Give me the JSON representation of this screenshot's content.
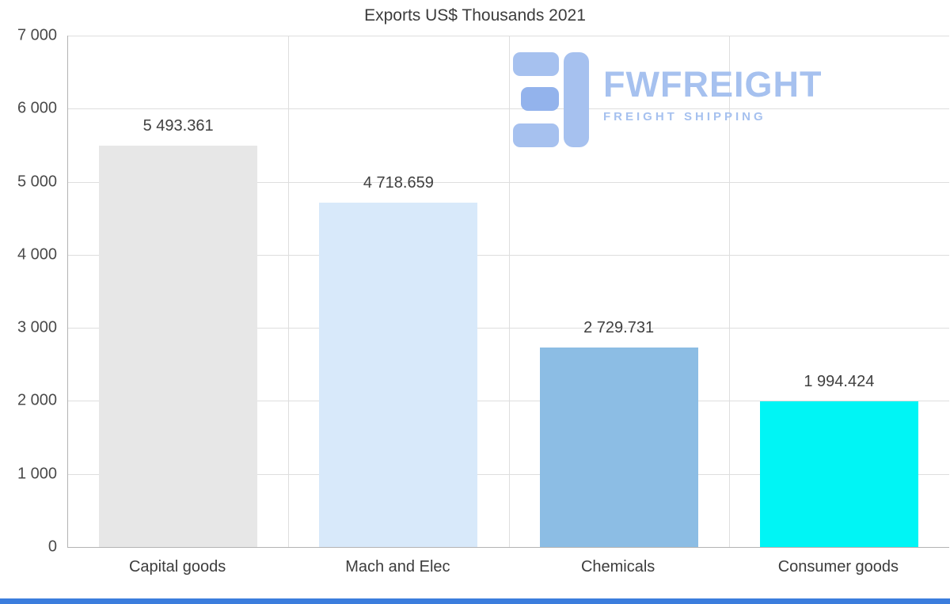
{
  "title": "Exports US$ Thousands 2021",
  "logo": {
    "name": "FWFREIGHT",
    "tagline": "FREIGHT SHIPPING",
    "color": "#a6c1ef"
  },
  "colors": {
    "bottom_strip": "#3b7ddd",
    "gridline": "#dedede",
    "axis_line": "#b3b3b3",
    "title_text": "#3c3c3c",
    "tick_text": "#4a4a4a",
    "value_text": "#404040"
  },
  "chart_data": {
    "type": "bar",
    "title": "Exports US$ Thousands 2021",
    "xlabel": "",
    "ylabel": "",
    "categories": [
      "Capital goods",
      "Mach and Elec",
      "Chemicals",
      "Consumer goods"
    ],
    "values": [
      5493.361,
      4718.659,
      2729.731,
      1994.424
    ],
    "value_labels": [
      "5 493.361",
      "4 718.659",
      "2 729.731",
      "1 994.424"
    ],
    "bar_colors": [
      "#e7e7e7",
      "#d8e9fa",
      "#8cbde4",
      "#00f5f5"
    ],
    "ylim": [
      0,
      7000
    ],
    "y_ticks": [
      {
        "value": 7000,
        "label": "7 000"
      },
      {
        "value": 6000,
        "label": "6 000"
      },
      {
        "value": 5000,
        "label": "5 000"
      },
      {
        "value": 4000,
        "label": "4 000"
      },
      {
        "value": 3000,
        "label": "3 000"
      },
      {
        "value": 2000,
        "label": "2 000"
      },
      {
        "value": 1000,
        "label": "1 000"
      },
      {
        "value": 0,
        "label": "0"
      }
    ],
    "grid": true,
    "legend": false
  }
}
